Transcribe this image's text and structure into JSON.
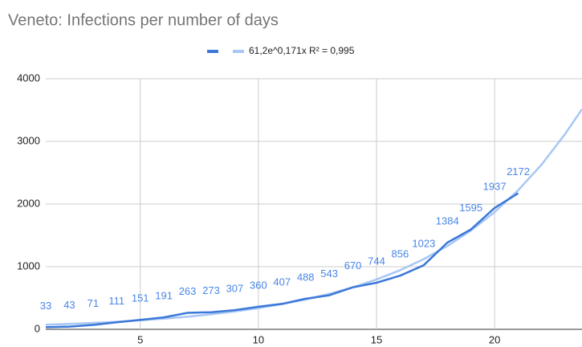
{
  "chart_data": {
    "type": "line",
    "title": "Veneto: Infections per number of days",
    "x": [
      1,
      2,
      3,
      4,
      5,
      6,
      7,
      8,
      9,
      10,
      11,
      12,
      13,
      14,
      15,
      16,
      17,
      18,
      19,
      20,
      21
    ],
    "series": [
      {
        "color": "#3c78d8",
        "values": [
          33,
          43,
          71,
          111,
          151,
          191,
          263,
          273,
          307,
          360,
          407,
          488,
          543,
          670,
          744,
          856,
          1023,
          1384,
          1595,
          1937,
          2172
        ],
        "data_labels": true
      },
      {
        "name": "61,2e^0,171x R² = 0,995",
        "color": "#a8c7f5",
        "x": [
          1,
          2,
          3,
          4,
          5,
          6,
          7,
          8,
          9,
          10,
          11,
          12,
          13,
          14,
          15,
          16,
          17,
          18,
          19,
          20,
          21,
          22,
          23,
          23.7
        ],
        "values": [
          73,
          86,
          102,
          121,
          144,
          171,
          203,
          240,
          285,
          338,
          402,
          476,
          565,
          671,
          796,
          944,
          1120,
          1329,
          1577,
          1871,
          2221,
          2635,
          3126,
          3514
        ]
      }
    ],
    "xlim": [
      1,
      23.7
    ],
    "xticks": [
      5,
      10,
      15,
      20
    ],
    "ylim": [
      0,
      4000
    ],
    "yticks": [
      0,
      1000,
      2000,
      3000,
      4000
    ],
    "grid": true
  }
}
